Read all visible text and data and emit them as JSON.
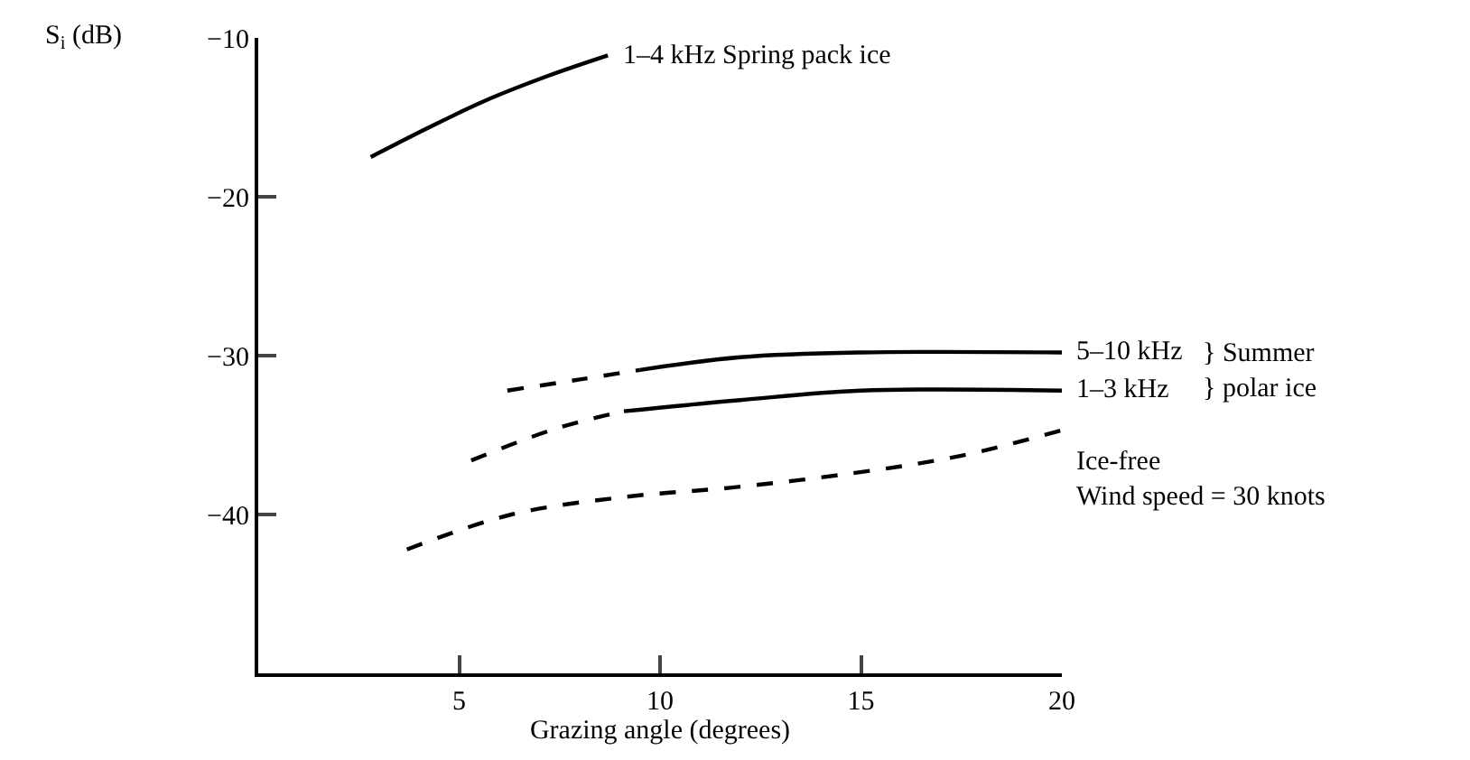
{
  "chart_data": {
    "type": "line",
    "xlabel": "Grazing angle (degrees)",
    "ylabel": "S$_{i}$ (dB)",
    "xlim": [
      0,
      20
    ],
    "ylim": [
      -50,
      -10
    ],
    "xticks": [
      5,
      10,
      15,
      20
    ],
    "yticks": [
      -10,
      -20,
      -30,
      -40
    ],
    "legend": false,
    "marker": "none",
    "series": [
      {
        "name": "1–4 kHz Spring pack ice",
        "color": "#000000",
        "line_style": "solid",
        "x": [
          2.8,
          4.2,
          5.6,
          7.2,
          8.7
        ],
        "values": [
          -17.5,
          -15.7,
          -14.0,
          -12.4,
          -11.1
        ]
      },
      {
        "color": "#000000",
        "line_style": "dashed",
        "x": [
          6.2,
          8.0,
          9.5
        ],
        "values": [
          -32.2,
          -31.5,
          -30.9
        ]
      },
      {
        "name": "5–10 kHz",
        "color": "#000000",
        "line_style": "solid",
        "x": [
          9.5,
          12,
          15,
          20
        ],
        "values": [
          -30.9,
          -30.1,
          -29.8,
          -29.8
        ]
      },
      {
        "color": "#000000",
        "line_style": "dashed",
        "x": [
          5.3,
          7.4,
          9.1
        ],
        "values": [
          -36.6,
          -34.6,
          -33.5
        ]
      },
      {
        "name": "1–3 kHz",
        "color": "#000000",
        "line_style": "solid",
        "x": [
          9.1,
          12,
          15,
          20
        ],
        "values": [
          -33.5,
          -32.8,
          -32.2,
          -32.2
        ]
      },
      {
        "name": "Ice-free\nWind speed = 30 knots",
        "color": "#000000",
        "line_style": "dashed",
        "x": [
          3.7,
          6.3,
          9.1,
          11.8,
          14.8,
          17.5,
          20
        ],
        "values": [
          -42.2,
          -40.0,
          -38.9,
          -38.3,
          -37.4,
          -36.3,
          -34.7
        ]
      }
    ],
    "annotations": [
      "} Summer\n} polar ice"
    ]
  }
}
